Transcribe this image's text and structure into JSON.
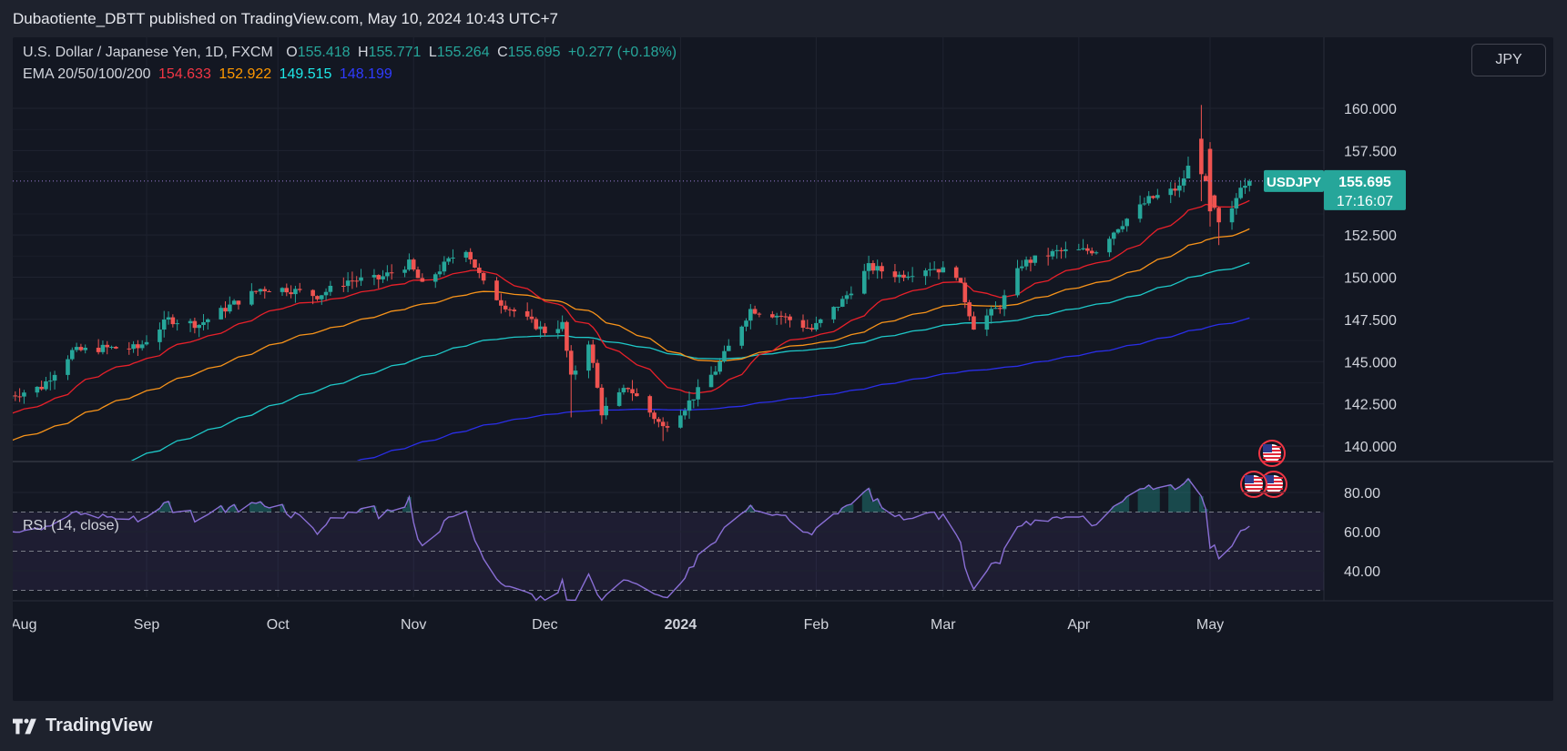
{
  "header": {
    "publisher": "Dubaotiente_DBTT published on TradingView.com, May 10, 2024 10:43 UTC+7"
  },
  "legend": {
    "symbol": "U.S. Dollar / Japanese Yen, 1D, FXCM",
    "open_label": "O",
    "open": "155.418",
    "high_label": "H",
    "high": "155.771",
    "low_label": "L",
    "low": "155.264",
    "close_label": "C",
    "close": "155.695",
    "change": "+0.277 (+0.18%)",
    "ema_label": "EMA 20/50/100/200",
    "ema20": "154.633",
    "ema50": "152.922",
    "ema100": "149.515",
    "ema200": "148.199",
    "rsi_label": "RSI (14, close)"
  },
  "currency_button": "JPY",
  "price_tag": {
    "symbol": "USDJPY",
    "price": "155.695",
    "countdown": "17:16:07"
  },
  "footer": {
    "brand": "TradingView"
  },
  "colors": {
    "up": "#26a69a",
    "down": "#ef5350",
    "ema20": "#e8202a",
    "ema50": "#f7931a",
    "ema100": "#1ec8c8",
    "ema200": "#2a2ee8",
    "rsi": "#8a6fd6",
    "background": "#131722"
  },
  "icons": [
    "us-flag-event-icon"
  ],
  "chart_data": {
    "type": "candlestick",
    "symbol": "USDJPY",
    "timeframe": "1D",
    "price_axis": {
      "ticks": [
        "160.000",
        "157.500",
        "152.500",
        "150.000",
        "147.500",
        "145.000",
        "142.500",
        "140.000"
      ],
      "range": [
        139.0,
        161.0
      ]
    },
    "time_axis": {
      "ticks": [
        "Aug",
        "Sep",
        "Oct",
        "Nov",
        "Dec",
        "2024",
        "Feb",
        "Mar",
        "Apr",
        "May"
      ]
    },
    "rsi_axis": {
      "ticks": [
        "80.00",
        "60.00",
        "40.00"
      ],
      "range": [
        25,
        90
      ],
      "bands": [
        70,
        50,
        30
      ]
    },
    "anchors": [
      [
        "2023-08-01",
        143.0
      ],
      [
        "2023-08-08",
        143.5
      ],
      [
        "2023-08-15",
        145.6
      ],
      [
        "2023-08-22",
        145.8
      ],
      [
        "2023-08-30",
        145.8
      ],
      [
        "2023-09-06",
        147.5
      ],
      [
        "2023-09-13",
        147.2
      ],
      [
        "2023-09-20",
        148.3
      ],
      [
        "2023-09-27",
        149.3
      ],
      [
        "2023-10-03",
        149.3
      ],
      [
        "2023-10-10",
        148.9
      ],
      [
        "2023-10-17",
        149.8
      ],
      [
        "2023-10-24",
        149.9
      ],
      [
        "2023-10-31",
        150.8
      ],
      [
        "2023-11-03",
        149.5
      ],
      [
        "2023-11-10",
        151.2
      ],
      [
        "2023-11-13",
        151.7
      ],
      [
        "2023-11-17",
        149.6
      ],
      [
        "2023-11-21",
        148.5
      ],
      [
        "2023-11-28",
        147.3
      ],
      [
        "2023-12-01",
        146.8
      ],
      [
        "2023-12-05",
        147.2
      ],
      [
        "2023-12-07",
        144.0
      ],
      [
        "2023-12-11",
        146.2
      ],
      [
        "2023-12-14",
        142.0
      ],
      [
        "2023-12-20",
        143.5
      ],
      [
        "2023-12-28",
        141.1
      ],
      [
        "2024-01-02",
        142.3
      ],
      [
        "2024-01-09",
        144.5
      ],
      [
        "2024-01-17",
        148.1
      ],
      [
        "2024-01-24",
        147.7
      ],
      [
        "2024-01-31",
        146.9
      ],
      [
        "2024-02-07",
        148.6
      ],
      [
        "2024-02-13",
        150.6
      ],
      [
        "2024-02-20",
        150.1
      ],
      [
        "2024-02-27",
        150.6
      ],
      [
        "2024-03-04",
        150.2
      ],
      [
        "2024-03-08",
        147.1
      ],
      [
        "2024-03-14",
        148.3
      ],
      [
        "2024-03-19",
        150.8
      ],
      [
        "2024-03-27",
        151.5
      ],
      [
        "2024-04-05",
        151.6
      ],
      [
        "2024-04-10",
        153.0
      ],
      [
        "2024-04-17",
        154.6
      ],
      [
        "2024-04-24",
        155.3
      ],
      [
        "2024-04-26",
        156.5
      ],
      [
        "2024-04-29",
        156.2
      ],
      [
        "2024-05-01",
        154.7
      ],
      [
        "2024-05-03",
        153.1
      ],
      [
        "2024-05-06",
        153.9
      ],
      [
        "2024-05-08",
        155.5
      ],
      [
        "2024-05-10",
        155.695
      ]
    ]
  }
}
